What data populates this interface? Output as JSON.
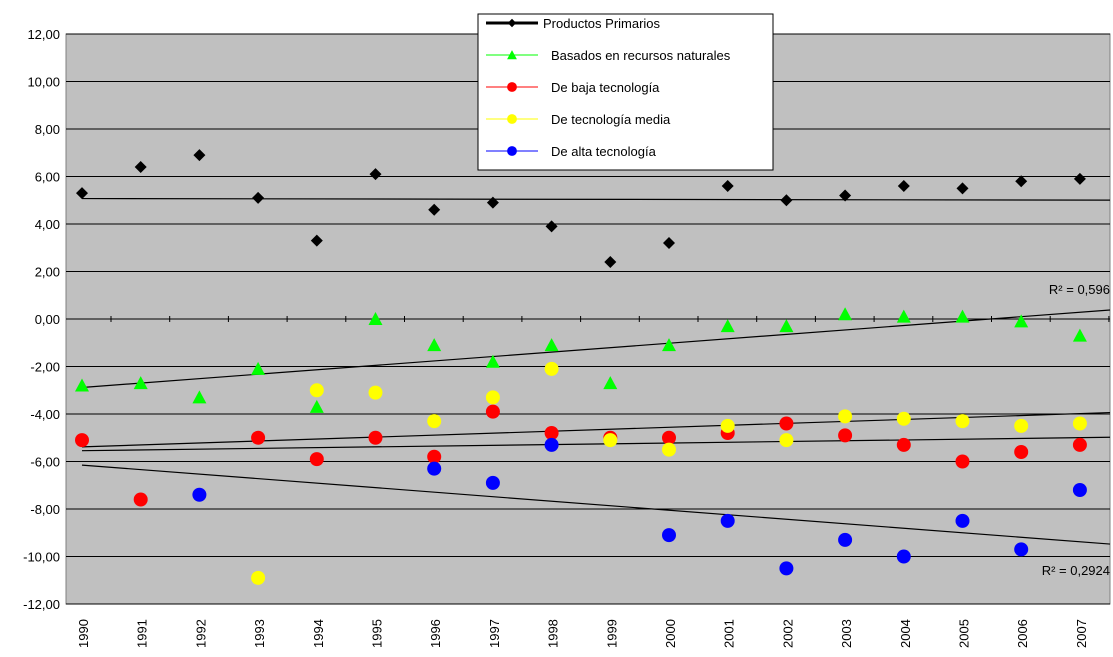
{
  "chart_data": {
    "type": "scatter",
    "categories": [
      "1990",
      "1991",
      "1992",
      "1993",
      "1994",
      "1995",
      "1996",
      "1997",
      "1998",
      "1999",
      "2000",
      "2001",
      "2002",
      "2003",
      "2004",
      "2005",
      "2006",
      "2007"
    ],
    "series": [
      {
        "name": "Productos Primarios",
        "color": "#000000",
        "marker": "diamond",
        "trendline": true,
        "values": [
          5.3,
          6.4,
          6.9,
          5.1,
          3.3,
          6.1,
          4.6,
          4.9,
          3.9,
          2.4,
          3.2,
          5.6,
          5.0,
          5.2,
          5.6,
          5.5,
          5.8,
          5.9
        ]
      },
      {
        "name": "Basados en recursos naturales",
        "color": "#00ff00",
        "marker": "triangle",
        "trendline": true,
        "values": [
          -2.8,
          -2.7,
          -3.3,
          -2.1,
          -3.7,
          0.0,
          -1.1,
          -1.8,
          -1.1,
          -2.7,
          -1.1,
          -0.3,
          -0.3,
          0.2,
          0.1,
          0.1,
          -0.1,
          -0.7
        ]
      },
      {
        "name": "De baja tecnología",
        "color": "#ff0000",
        "marker": "circle",
        "trendline": true,
        "values": [
          -5.1,
          -7.6,
          null,
          -5.0,
          -5.9,
          -5.0,
          -5.8,
          -3.9,
          -4.8,
          -5.0,
          -5.0,
          -4.8,
          -4.4,
          -4.9,
          -5.3,
          -6.0,
          -5.6,
          -5.3
        ]
      },
      {
        "name": "De tecnología media",
        "color": "#ffff00",
        "marker": "circle",
        "trendline": true,
        "values": [
          null,
          null,
          null,
          -10.9,
          -3.0,
          -3.1,
          -4.3,
          -3.3,
          -2.1,
          -5.1,
          -5.5,
          -4.5,
          -5.1,
          -4.1,
          -4.2,
          -4.3,
          -4.5,
          -4.4
        ]
      },
      {
        "name": "De alta tecnología",
        "color": "#0000ff",
        "marker": "circle",
        "trendline": true,
        "values": [
          null,
          null,
          -7.4,
          null,
          null,
          null,
          -6.3,
          -6.9,
          -5.3,
          null,
          -9.1,
          -8.5,
          -10.5,
          -9.3,
          -10.0,
          -8.5,
          -9.7,
          -7.2
        ]
      }
    ],
    "annotations": [
      "R² = 0,596",
      "R² = 0,2924"
    ],
    "ylim": [
      -12,
      12
    ],
    "yticks": [
      {
        "value": -12,
        "label": "-12,00"
      },
      {
        "value": -10,
        "label": "-10,00"
      },
      {
        "value": -8,
        "label": "-8,00"
      },
      {
        "value": -6,
        "label": "-6,00"
      },
      {
        "value": -4,
        "label": "-4,00"
      },
      {
        "value": -2,
        "label": "-2,00"
      },
      {
        "value": 0,
        "label": "0,00"
      },
      {
        "value": 2,
        "label": "2,00"
      },
      {
        "value": 4,
        "label": "4,00"
      },
      {
        "value": 6,
        "label": "6,00"
      },
      {
        "value": 8,
        "label": "8,00"
      },
      {
        "value": 10,
        "label": "10,00"
      },
      {
        "value": 12,
        "label": "12,00"
      }
    ],
    "grid": true,
    "legend": "top"
  }
}
